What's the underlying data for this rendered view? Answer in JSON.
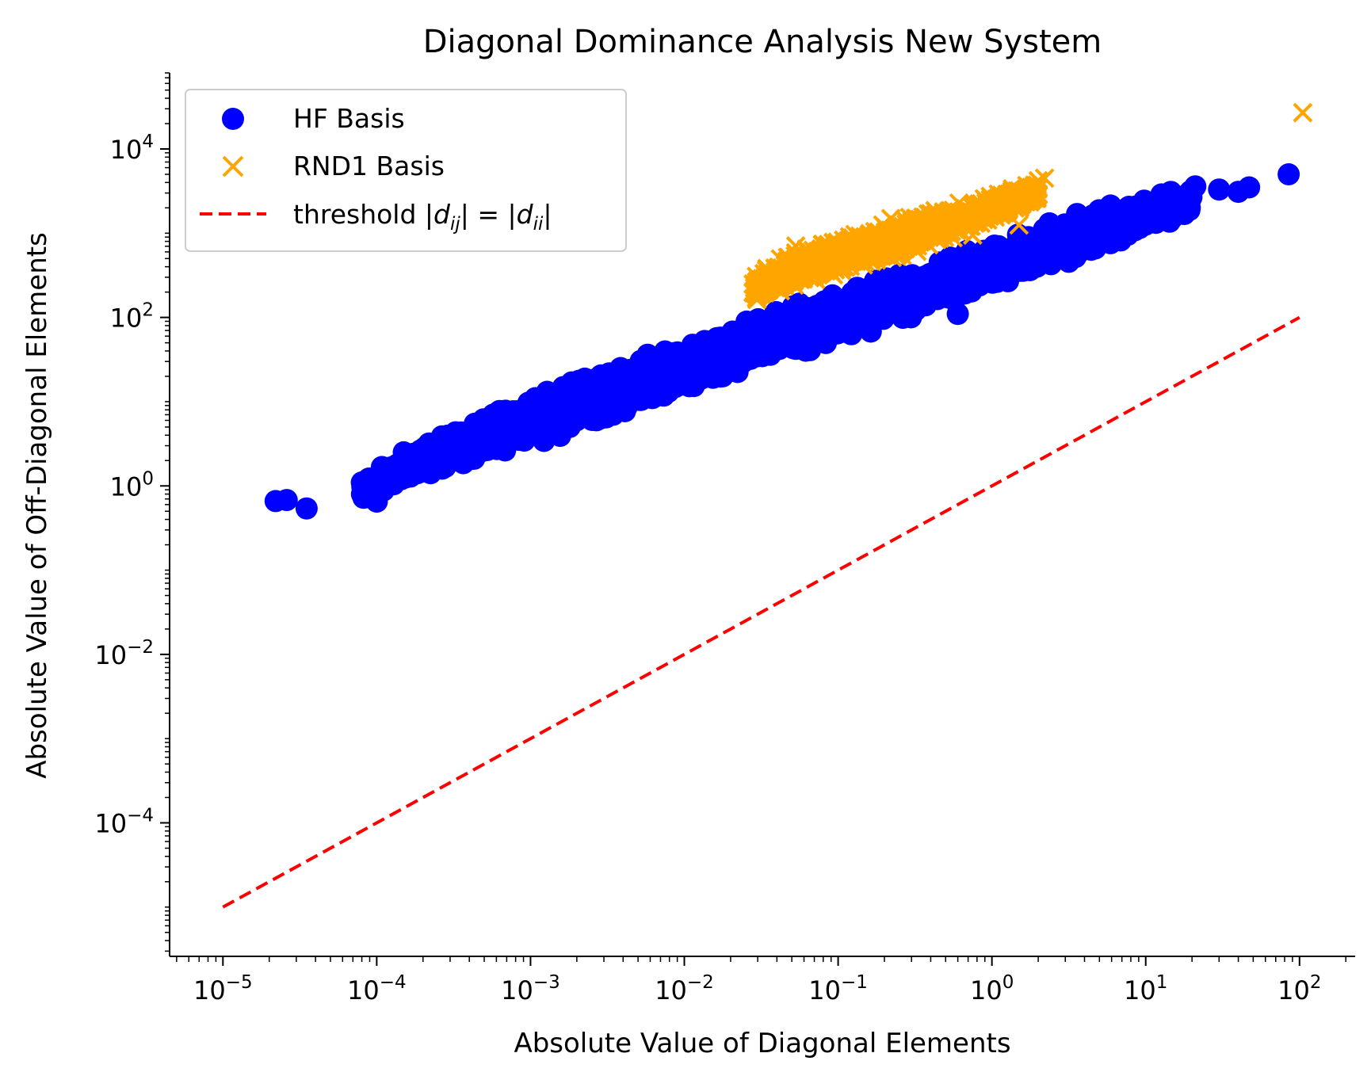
{
  "chart_data": {
    "type": "scatter",
    "title": "Diagonal Dominance Analysis New System",
    "xlabel": "Absolute Value of Diagonal Elements",
    "ylabel": "Absolute Value of Off-Diagonal Elements",
    "xscale": "log",
    "yscale": "log",
    "xlim": [
      4.5e-06,
      230
    ],
    "ylim": [
      2.6e-06,
      80000
    ],
    "x_ticks": [
      {
        "base": "10",
        "exp": "−5",
        "value": 1e-05
      },
      {
        "base": "10",
        "exp": "−4",
        "value": 0.0001
      },
      {
        "base": "10",
        "exp": "−3",
        "value": 0.001
      },
      {
        "base": "10",
        "exp": "−2",
        "value": 0.01
      },
      {
        "base": "10",
        "exp": "−1",
        "value": 0.1
      },
      {
        "base": "10",
        "exp": "0",
        "value": 1
      },
      {
        "base": "10",
        "exp": "1",
        "value": 10
      },
      {
        "base": "10",
        "exp": "2",
        "value": 100
      }
    ],
    "y_ticks": [
      {
        "base": "10",
        "exp": "−4",
        "value": 0.0001
      },
      {
        "base": "10",
        "exp": "−2",
        "value": 0.01
      },
      {
        "base": "10",
        "exp": "0",
        "value": 1
      },
      {
        "base": "10",
        "exp": "2",
        "value": 100
      },
      {
        "base": "10",
        "exp": "4",
        "value": 10000
      }
    ],
    "grid": false,
    "legend_position": "top-left",
    "legend": [
      {
        "label": "HF Basis",
        "marker": "circle",
        "color": "#0000ff"
      },
      {
        "label": "RND1 Basis",
        "marker": "x",
        "color": "#ffa500"
      },
      {
        "label_prefix": "threshold ",
        "math": [
          "|",
          "d",
          "ij",
          "| = |",
          "d",
          "ii",
          "|"
        ],
        "marker": "dashed-line",
        "color": "#ff0000"
      }
    ],
    "series": [
      {
        "name": "HF Basis",
        "marker": "circle",
        "color": "#0000ff",
        "band": [
          {
            "x": 8e-05,
            "y_low": 0.6,
            "y_high": 1.3
          },
          {
            "x": 0.0001,
            "y_low": 0.7,
            "y_high": 1.7
          },
          {
            "x": 0.0003,
            "y_low": 1.5,
            "y_high": 5.0
          },
          {
            "x": 0.001,
            "y_low": 2.5,
            "y_high": 14
          },
          {
            "x": 0.003,
            "y_low": 5,
            "y_high": 28
          },
          {
            "x": 0.01,
            "y_low": 10,
            "y_high": 55
          },
          {
            "x": 0.03,
            "y_low": 25,
            "y_high": 110
          },
          {
            "x": 0.1,
            "y_low": 45,
            "y_high": 230
          },
          {
            "x": 0.3,
            "y_low": 90,
            "y_high": 450
          },
          {
            "x": 1,
            "y_low": 200,
            "y_high": 900
          },
          {
            "x": 3,
            "y_low": 400,
            "y_high": 1800
          },
          {
            "x": 10,
            "y_low": 900,
            "y_high": 3000
          },
          {
            "x": 20,
            "y_low": 1500,
            "y_high": 3800
          }
        ],
        "points": [
          {
            "x": 2.2e-05,
            "y": 0.66
          },
          {
            "x": 2.6e-05,
            "y": 0.68
          },
          {
            "x": 3.5e-05,
            "y": 0.54
          },
          {
            "x": 8e-05,
            "y": 1.1
          },
          {
            "x": 0.0001,
            "y": 0.65
          },
          {
            "x": 0.00015,
            "y": 2.5
          },
          {
            "x": 0.6,
            "y": 110
          },
          {
            "x": 18,
            "y": 2600
          },
          {
            "x": 21,
            "y": 3600
          },
          {
            "x": 30,
            "y": 3300
          },
          {
            "x": 40,
            "y": 3100
          },
          {
            "x": 47,
            "y": 3500
          },
          {
            "x": 85,
            "y": 5000
          }
        ]
      },
      {
        "name": "RND1 Basis",
        "marker": "x",
        "color": "#ffa500",
        "band": [
          {
            "x": 0.028,
            "y_low": 150,
            "y_high": 300
          },
          {
            "x": 0.05,
            "y_low": 190,
            "y_high": 700
          },
          {
            "x": 0.1,
            "y_low": 280,
            "y_high": 1000
          },
          {
            "x": 0.3,
            "y_low": 550,
            "y_high": 1800
          },
          {
            "x": 1,
            "y_low": 1300,
            "y_high": 3000
          },
          {
            "x": 2,
            "y_low": 2300,
            "y_high": 4300
          }
        ],
        "points": [
          {
            "x": 0.75,
            "y": 950
          },
          {
            "x": 1.5,
            "y": 1250
          },
          {
            "x": 1.8,
            "y": 3500
          },
          {
            "x": 2.0,
            "y": 4200
          },
          {
            "x": 2.2,
            "y": 4500
          },
          {
            "x": 105,
            "y": 27000
          }
        ]
      },
      {
        "name": "threshold",
        "type": "line",
        "style": "dashed",
        "color": "#ff0000",
        "points": [
          {
            "x": 1e-05,
            "y": 1e-05
          },
          {
            "x": 100,
            "y": 100
          }
        ]
      }
    ]
  }
}
